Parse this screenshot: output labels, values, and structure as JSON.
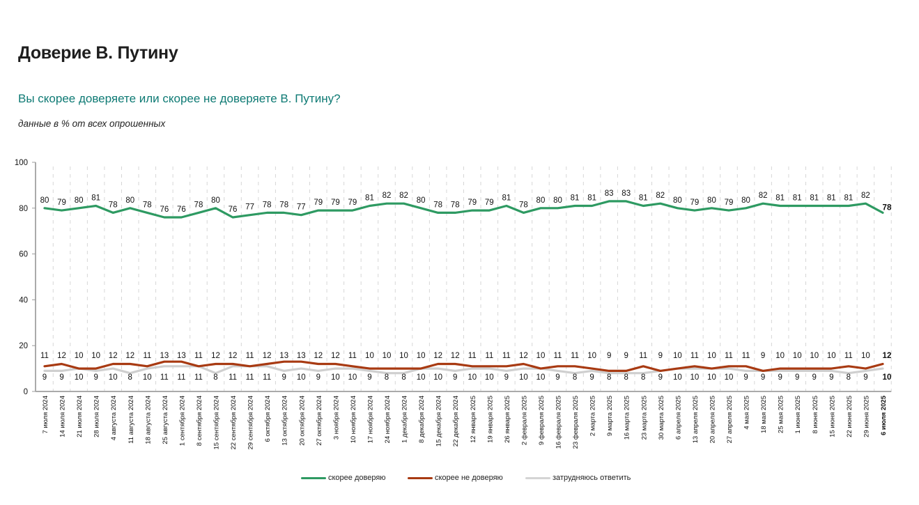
{
  "header": {
    "title": "Доверие В. Путину",
    "subtitle": "Вы скорее доверяете или скорее не доверяете В. Путину?",
    "note": "данные в % от всех опрошенных"
  },
  "chart_data": {
    "type": "line",
    "title": "Доверие В. Путину",
    "xlabel": "",
    "ylabel": "",
    "ylim": [
      0,
      100
    ],
    "yticks": [
      0,
      20,
      40,
      60,
      80,
      100
    ],
    "grid": "vertical dashed",
    "legend_position": "bottom-center",
    "categories": [
      "7 июля 2024",
      "14 июля 2024",
      "21 июля 2024",
      "28 июля 2024",
      "4 августа 2024",
      "11 августа 2024",
      "18 августа 2024",
      "25 августа 2024",
      "1 сентября 2024",
      "8 сентября 2024",
      "15 сентября 2024",
      "22 сентября 2024",
      "29 сентября 2024",
      "6 октября 2024",
      "13 октября 2024",
      "20 октября 2024",
      "27 октября 2024",
      "3 ноября 2024",
      "10 ноября 2024",
      "17 ноября 2024",
      "24 ноября 2024",
      "1 декабря 2024",
      "8 декабря 2024",
      "15 декабря 2024",
      "22 декабря 2024",
      "12 января 2025",
      "19 января 2025",
      "26 января 2025",
      "2 февраля 2025",
      "9 февраля 2025",
      "16 февраля 2025",
      "23 февраля 2025",
      "2 марта 2025",
      "9 марта 2025",
      "16 марта 2025",
      "23 марта 2025",
      "30 марта 2025",
      "6 апреля 2025",
      "13 апреля 2025",
      "20 апреля 2025",
      "27 апреля 2025",
      "4 мая 2025",
      "18 мая 2025",
      "25 мая 2025",
      "1 июня 2025",
      "8 июня 2025",
      "15 июня 2025",
      "22 июня 2025",
      "29 июня 2025",
      "6 июля 2025"
    ],
    "series": [
      {
        "name": "скорее доверяю",
        "color": "#2e9a62",
        "values": [
          80,
          79,
          80,
          81,
          78,
          80,
          78,
          76,
          76,
          78,
          80,
          76,
          77,
          78,
          78,
          77,
          79,
          79,
          79,
          81,
          82,
          82,
          80,
          78,
          78,
          79,
          79,
          81,
          78,
          80,
          80,
          81,
          81,
          83,
          83,
          81,
          82,
          80,
          79,
          80,
          79,
          80,
          82,
          81,
          81,
          81,
          81,
          81,
          82,
          78
        ]
      },
      {
        "name": "скорее не доверяю",
        "color": "#a83a12",
        "values": [
          11,
          12,
          10,
          10,
          12,
          12,
          11,
          13,
          13,
          11,
          12,
          12,
          11,
          12,
          13,
          13,
          12,
          12,
          11,
          10,
          10,
          10,
          10,
          12,
          12,
          11,
          11,
          11,
          12,
          10,
          11,
          11,
          10,
          9,
          9,
          11,
          9,
          10,
          11,
          10,
          11,
          11,
          9,
          10,
          10,
          10,
          10,
          11,
          10,
          12
        ]
      },
      {
        "name": "затрудняюсь ответить",
        "color": "#cfcfcf",
        "values": [
          9,
          9,
          10,
          9,
          10,
          8,
          10,
          11,
          11,
          11,
          8,
          11,
          11,
          11,
          9,
          10,
          9,
          10,
          10,
          9,
          8,
          8,
          10,
          10,
          9,
          10,
          10,
          9,
          10,
          10,
          9,
          8,
          9,
          8,
          8,
          8,
          9,
          10,
          10,
          10,
          10,
          9,
          9,
          9,
          9,
          9,
          9,
          8,
          9,
          10
        ]
      }
    ]
  }
}
